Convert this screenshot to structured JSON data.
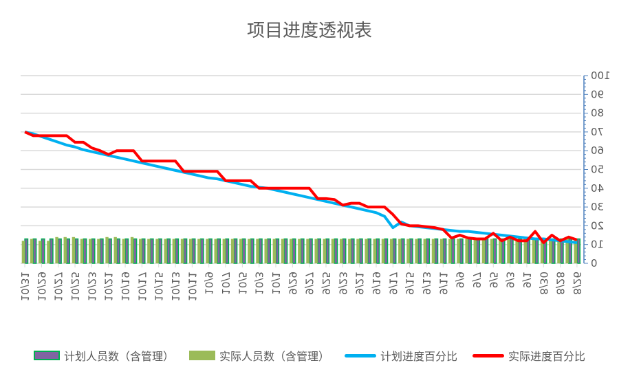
{
  "title": "项目进度透视表",
  "legend": [
    {
      "label": "计划人员数（含管理）",
      "color": "#8064a2",
      "border": "#00b050",
      "kind": "bar"
    },
    {
      "label": "实际人员数（含管理）",
      "color": "#9bbb59",
      "kind": "bar"
    },
    {
      "label": "计划进度百分比",
      "color": "#00b0f0",
      "kind": "line"
    },
    {
      "label": "实际进度百分比",
      "color": "#ff0000",
      "kind": "line"
    }
  ],
  "chart_data": {
    "type": "bar+line",
    "title": "项目进度透视表",
    "xlabel": "",
    "ylabel": "",
    "ylim": [
      0,
      100
    ],
    "yticks": [
      0,
      10,
      20,
      30,
      40,
      50,
      60,
      70,
      80,
      90,
      100
    ],
    "y_axis_position": "right",
    "grid": true,
    "legend_position": "bottom",
    "mirrored_horizontally": true,
    "categories": [
      "8/26",
      "8/27",
      "8/28",
      "8/29",
      "8/30",
      "8/31",
      "9/1",
      "9/2",
      "9/3",
      "9/4",
      "9/5",
      "9/6",
      "9/7",
      "9/8",
      "9/9",
      "9/10",
      "9/11",
      "9/12",
      "9/13",
      "9/14",
      "9/15",
      "9/16",
      "9/17",
      "9/18",
      "9/19",
      "9/20",
      "9/21",
      "9/22",
      "9/23",
      "9/24",
      "9/25",
      "9/26",
      "9/27",
      "9/28",
      "9/29",
      "9/30",
      "10/1",
      "10/2",
      "10/3",
      "10/4",
      "10/5",
      "10/6",
      "10/7",
      "10/8",
      "10/9",
      "10/10",
      "10/11",
      "10/12",
      "10/13",
      "10/14",
      "10/15",
      "10/16",
      "10/17",
      "10/18",
      "10/19",
      "10/20",
      "10/21",
      "10/22",
      "10/23",
      "10/24",
      "10/25",
      "10/26",
      "10/27",
      "10/28",
      "10/29",
      "10/30",
      "10/31"
    ],
    "tick_labels": [
      "8/26",
      "8/28",
      "8/30",
      "9/1",
      "9/3",
      "9/5",
      "9/7",
      "9/9",
      "9/11",
      "9/13",
      "9/15",
      "9/17",
      "9/19",
      "9/21",
      "9/23",
      "9/25",
      "9/27",
      "9/29",
      "10/1",
      "10/3",
      "10/5",
      "10/7",
      "10/9",
      "10/11",
      "10/13",
      "10/15",
      "10/17",
      "10/19",
      "10/21",
      "10/23",
      "10/25",
      "10/27",
      "10/29",
      "10/31"
    ],
    "series": [
      {
        "name": "计划人员数（含管理）",
        "type": "bar",
        "color": "#8064a2",
        "values": [
          13,
          13,
          13,
          13,
          13,
          13,
          13,
          13,
          13,
          13,
          13,
          13,
          13,
          13,
          13,
          13,
          13,
          13,
          13,
          13,
          13,
          13,
          13,
          13,
          13,
          13,
          13,
          13,
          13,
          13,
          13,
          13,
          13,
          13,
          13,
          13,
          13,
          13,
          13,
          13,
          13,
          13,
          13,
          13,
          13,
          13,
          13,
          13,
          13,
          13,
          13,
          13,
          13,
          13,
          13,
          13,
          13,
          13,
          13,
          13,
          13,
          13,
          13,
          13,
          13,
          13,
          13
        ]
      },
      {
        "name": "实际人员数（含管理）",
        "type": "bar",
        "color": "#9bbb59",
        "values": [
          13,
          13,
          13,
          13,
          13,
          13,
          13,
          13,
          13,
          13,
          13,
          13,
          13,
          13,
          13,
          13,
          13,
          13,
          13,
          13,
          13,
          13,
          13,
          13,
          13,
          13,
          13,
          13,
          13,
          13,
          13,
          13,
          13,
          13,
          13,
          13,
          13,
          13,
          13,
          13,
          13,
          13,
          13,
          13,
          13,
          13,
          13,
          13,
          13,
          13,
          13,
          13,
          13,
          14,
          13,
          14,
          14,
          13,
          13,
          13,
          14,
          14,
          14,
          12,
          12,
          13,
          12
        ]
      },
      {
        "name": "计划进度百分比",
        "type": "line",
        "color": "#00b0f0",
        "values": [
          11,
          11.5,
          12,
          12.5,
          13,
          13,
          13.5,
          14,
          14.5,
          15,
          15.5,
          16,
          16.5,
          17,
          17,
          17.5,
          18,
          18.5,
          19,
          19.5,
          20,
          22,
          19,
          25,
          27,
          28,
          29,
          30,
          31,
          32,
          33,
          34,
          35,
          36,
          37,
          38,
          39,
          40,
          40.5,
          41,
          42,
          43,
          44,
          45,
          45.5,
          46.5,
          47.5,
          48.5,
          49.5,
          50.5,
          51.5,
          52.5,
          53.5,
          54.5,
          55.5,
          56.5,
          57.5,
          58.5,
          59.5,
          60.5,
          62,
          63,
          64.5,
          66,
          67.5,
          69,
          70
        ]
      },
      {
        "name": "实际进度百分比",
        "type": "line",
        "color": "#ff0000",
        "values": [
          12.5,
          14,
          12,
          15,
          11,
          17,
          12,
          12,
          14,
          12,
          16,
          13,
          13,
          13.5,
          15,
          13.5,
          18,
          19,
          19.5,
          20,
          20,
          21,
          26,
          30,
          30,
          30,
          32,
          32,
          31,
          34,
          34.5,
          34.5,
          40,
          40,
          40,
          40,
          40,
          40,
          40,
          44,
          44,
          44,
          44,
          49,
          49,
          49,
          49,
          49,
          54.5,
          54.5,
          54.5,
          54.5,
          54.5,
          60,
          60,
          60,
          58,
          60,
          61.5,
          64.5,
          64.5,
          68,
          68,
          68,
          68,
          68,
          70
        ]
      }
    ]
  }
}
